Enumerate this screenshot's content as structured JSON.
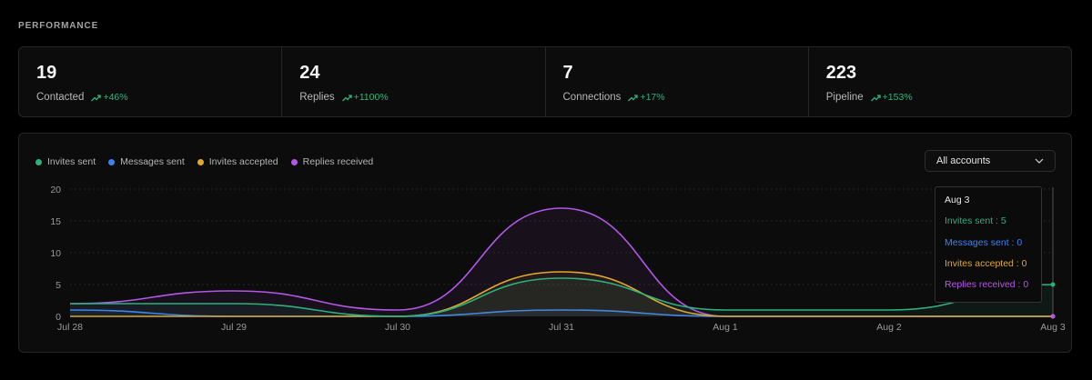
{
  "section_title": "PERFORMANCE",
  "stats": [
    {
      "value": "19",
      "label": "Contacted",
      "change": "+46%"
    },
    {
      "value": "24",
      "label": "Replies",
      "change": "+1100%"
    },
    {
      "value": "7",
      "label": "Connections",
      "change": "+17%"
    },
    {
      "value": "223",
      "label": "Pipeline",
      "change": "+153%"
    }
  ],
  "colors": {
    "positive": "#2eb67d",
    "invites_sent": "#2bb27c",
    "messages_sent": "#3b82f6",
    "invites_accepted": "#e0a82e",
    "replies_received": "#b456e8"
  },
  "account_select": {
    "value": "All accounts",
    "icon": "chevron-down-icon"
  },
  "chart_data": {
    "type": "line",
    "title": "",
    "xlabel": "",
    "ylabel": "",
    "x": [
      "Jul 28",
      "Jul 29",
      "Jul 30",
      "Jul 31",
      "Aug 1",
      "Aug 2",
      "Aug 3"
    ],
    "ylim": [
      0,
      20
    ],
    "yticks": [
      "0",
      "5",
      "10",
      "15",
      "20"
    ],
    "grid": true,
    "legend": "top-left",
    "series": [
      {
        "name": "Invites sent",
        "color": "#2bb27c",
        "values": [
          2,
          2,
          0,
          6,
          1,
          1,
          5
        ]
      },
      {
        "name": "Messages sent",
        "color": "#3b82f6",
        "values": [
          1,
          0,
          0,
          1,
          0,
          0,
          0
        ]
      },
      {
        "name": "Invites accepted",
        "color": "#e0a82e",
        "values": [
          0,
          0,
          0,
          7,
          0,
          0,
          0
        ]
      },
      {
        "name": "Replies received",
        "color": "#b456e8",
        "values": [
          2,
          4,
          1,
          17,
          0,
          0,
          0
        ]
      }
    ]
  },
  "tooltip": {
    "date": "Aug 3",
    "lines": [
      "Invites sent : 5",
      "Messages sent : 0",
      "Invites accepted : 0",
      "Replies received : 0"
    ]
  }
}
